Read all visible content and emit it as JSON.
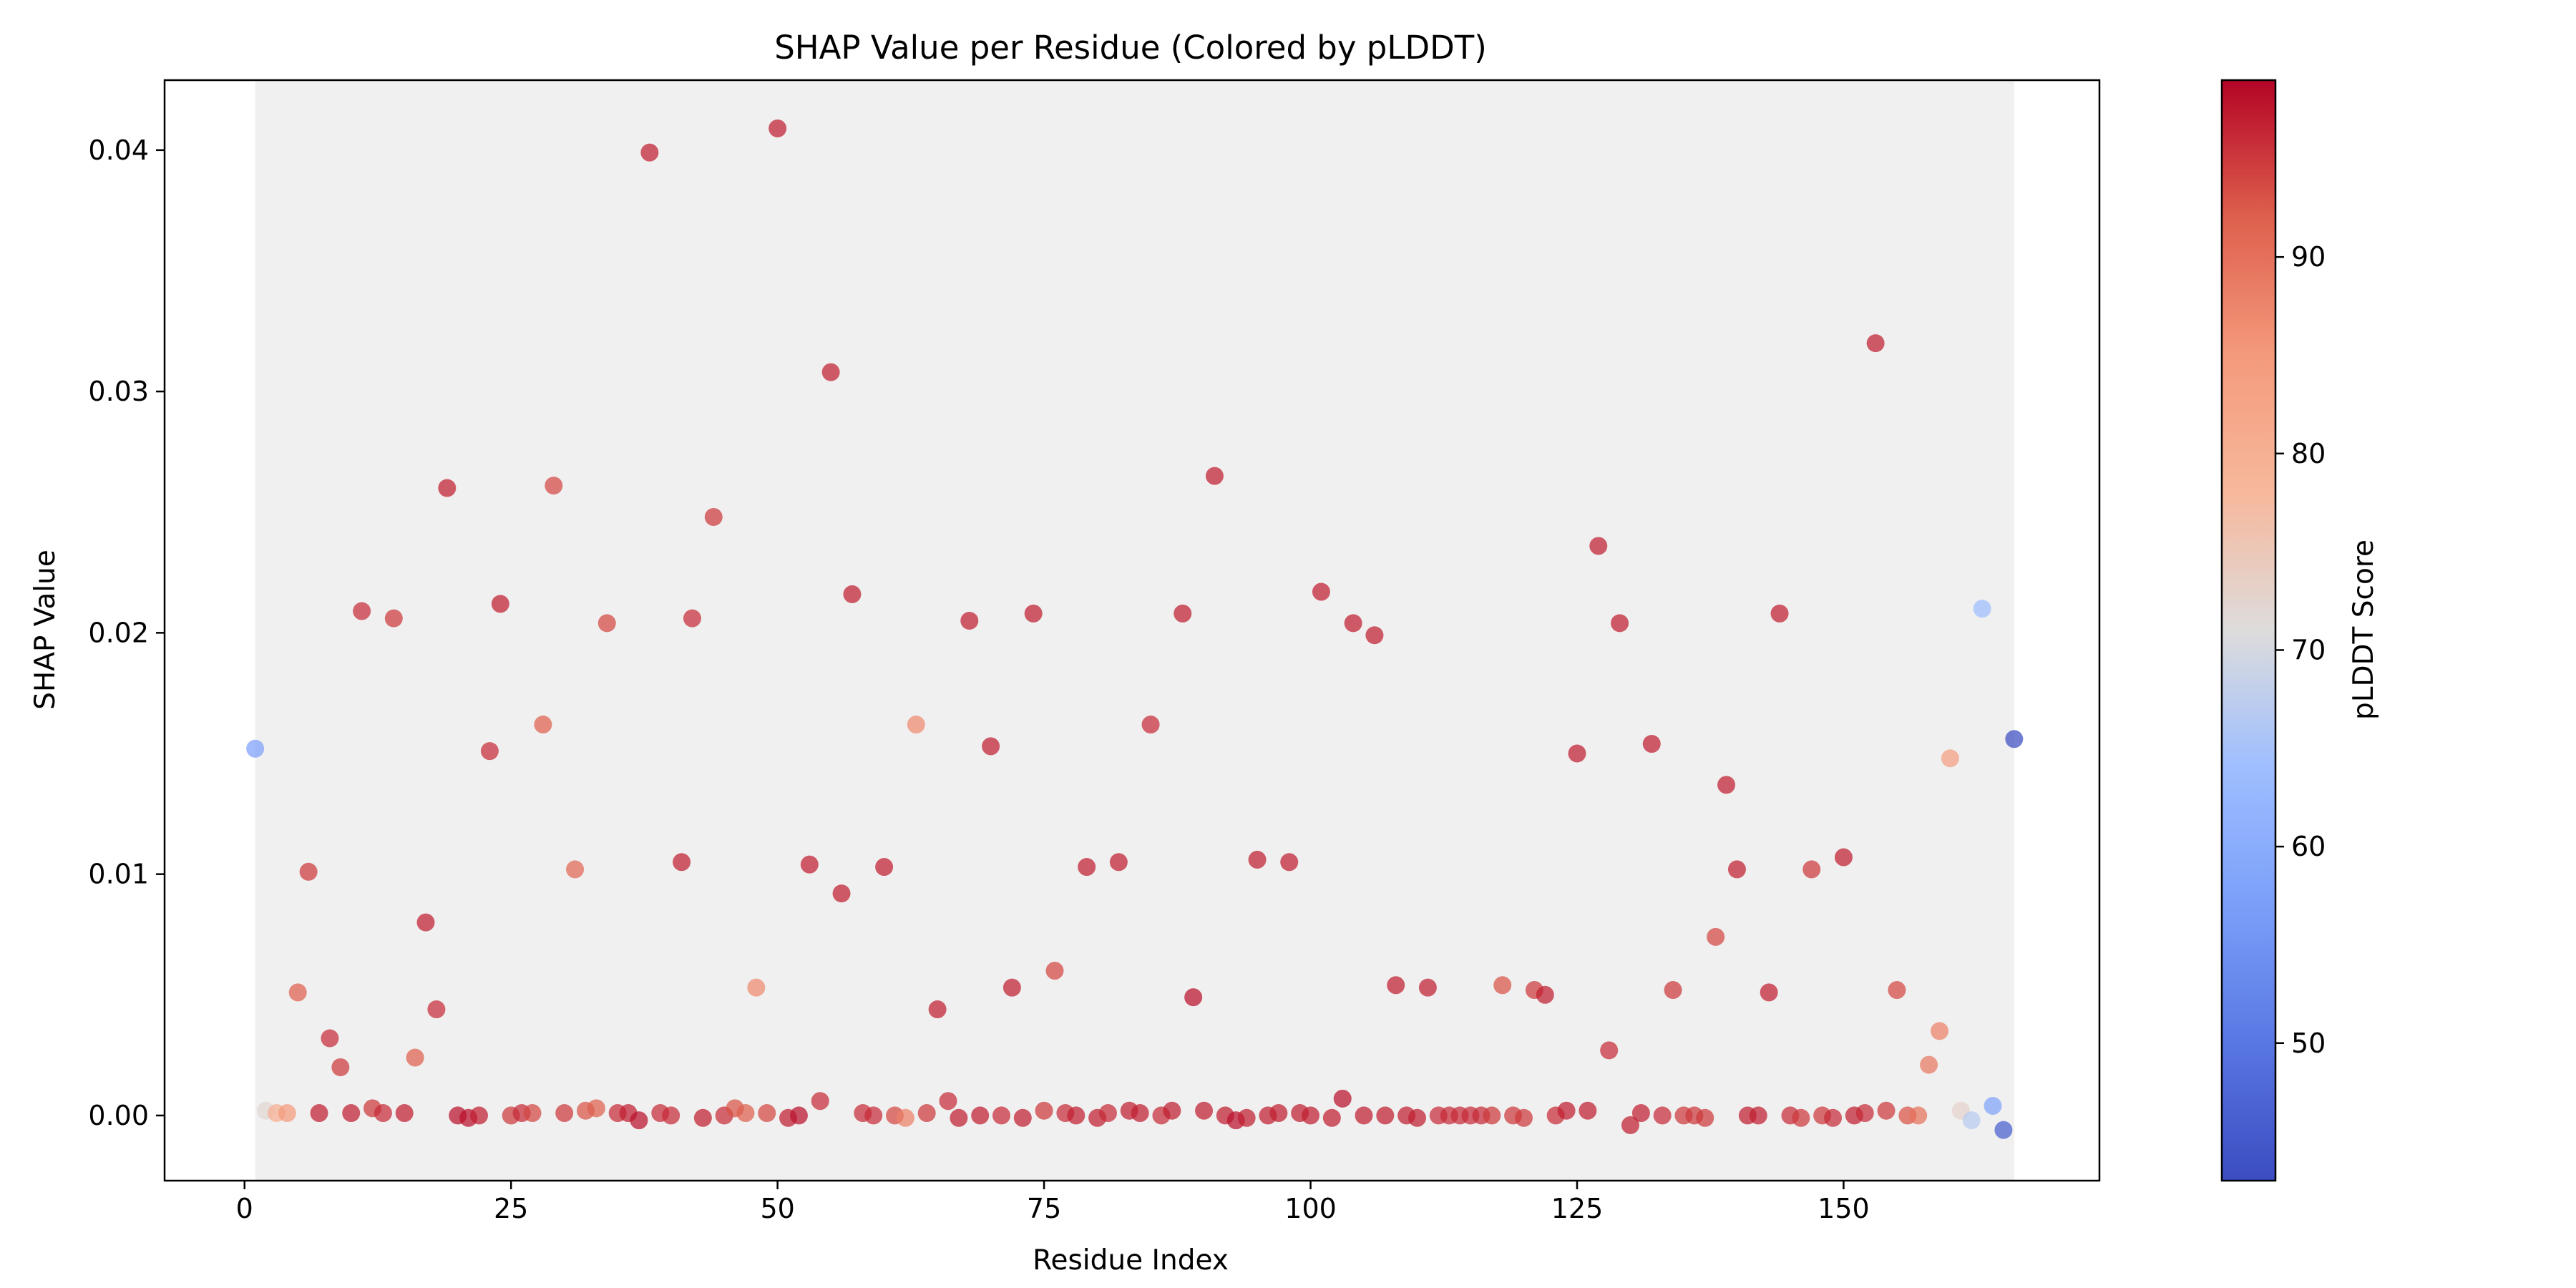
{
  "chart_data": {
    "type": "scatter",
    "title": "SHAP Value per Residue (Colored by pLDDT)",
    "xlabel": "Residue Index",
    "ylabel": "SHAP Value",
    "xlim": [
      -7.5,
      174.0
    ],
    "ylim": [
      -0.0027,
      0.0429
    ],
    "xticks": [
      0,
      25,
      50,
      75,
      100,
      125,
      150
    ],
    "xtick_labels": [
      "0",
      "25",
      "50",
      "75",
      "100",
      "125",
      "150"
    ],
    "yticks": [
      0.0,
      0.01,
      0.02,
      0.03,
      0.04
    ],
    "ytick_labels": [
      "0.00",
      "0.01",
      "0.02",
      "0.03",
      "0.04"
    ],
    "grid": false,
    "shaded_region": {
      "x": [
        1,
        166
      ],
      "color": "#f0f0f0"
    },
    "colormap": "coolwarm",
    "colorbar": {
      "label": "pLDDT Score",
      "range": [
        43,
        99
      ],
      "ticks": [
        50,
        60,
        70,
        80,
        90
      ],
      "tick_labels": [
        "50",
        "60",
        "70",
        "80",
        "90"
      ]
    },
    "points": [
      {
        "x": 1,
        "y": 0.0152,
        "c": 57
      },
      {
        "x": 2,
        "y": 0.0002,
        "c": 72
      },
      {
        "x": 3,
        "y": 0.0001,
        "c": 80
      },
      {
        "x": 4,
        "y": 0.0001,
        "c": 85
      },
      {
        "x": 5,
        "y": 0.0051,
        "c": 92
      },
      {
        "x": 6,
        "y": 0.0101,
        "c": 95
      },
      {
        "x": 7,
        "y": 0.0001,
        "c": 97
      },
      {
        "x": 8,
        "y": 0.0032,
        "c": 96
      },
      {
        "x": 9,
        "y": 0.002,
        "c": 95
      },
      {
        "x": 10,
        "y": 0.0001,
        "c": 97
      },
      {
        "x": 11,
        "y": 0.0209,
        "c": 96
      },
      {
        "x": 12,
        "y": 0.0003,
        "c": 95
      },
      {
        "x": 13,
        "y": 0.0001,
        "c": 96
      },
      {
        "x": 14,
        "y": 0.0206,
        "c": 95
      },
      {
        "x": 15,
        "y": 0.0001,
        "c": 97
      },
      {
        "x": 16,
        "y": 0.0024,
        "c": 92
      },
      {
        "x": 17,
        "y": 0.008,
        "c": 97
      },
      {
        "x": 18,
        "y": 0.0044,
        "c": 96
      },
      {
        "x": 19,
        "y": 0.026,
        "c": 97
      },
      {
        "x": 20,
        "y": 0.0,
        "c": 98
      },
      {
        "x": 21,
        "y": -0.0001,
        "c": 98
      },
      {
        "x": 22,
        "y": 0.0,
        "c": 97
      },
      {
        "x": 23,
        "y": 0.0151,
        "c": 96
      },
      {
        "x": 24,
        "y": 0.0212,
        "c": 97
      },
      {
        "x": 25,
        "y": 0.0,
        "c": 95
      },
      {
        "x": 26,
        "y": 0.0001,
        "c": 96
      },
      {
        "x": 27,
        "y": 0.0001,
        "c": 94
      },
      {
        "x": 28,
        "y": 0.0162,
        "c": 92
      },
      {
        "x": 29,
        "y": 0.0261,
        "c": 94
      },
      {
        "x": 30,
        "y": 0.0001,
        "c": 95
      },
      {
        "x": 31,
        "y": 0.0102,
        "c": 91
      },
      {
        "x": 32,
        "y": 0.0002,
        "c": 93
      },
      {
        "x": 33,
        "y": 0.0003,
        "c": 92
      },
      {
        "x": 34,
        "y": 0.0204,
        "c": 94
      },
      {
        "x": 35,
        "y": 0.0001,
        "c": 96
      },
      {
        "x": 36,
        "y": 0.0001,
        "c": 97
      },
      {
        "x": 37,
        "y": -0.0002,
        "c": 98
      },
      {
        "x": 38,
        "y": 0.0399,
        "c": 97
      },
      {
        "x": 39,
        "y": 0.0001,
        "c": 96
      },
      {
        "x": 40,
        "y": 0.0,
        "c": 96
      },
      {
        "x": 41,
        "y": 0.0105,
        "c": 97
      },
      {
        "x": 42,
        "y": 0.0206,
        "c": 96
      },
      {
        "x": 43,
        "y": -0.0001,
        "c": 97
      },
      {
        "x": 44,
        "y": 0.0248,
        "c": 95
      },
      {
        "x": 45,
        "y": 0.0,
        "c": 96
      },
      {
        "x": 46,
        "y": 0.0003,
        "c": 93
      },
      {
        "x": 47,
        "y": 0.0001,
        "c": 92
      },
      {
        "x": 48,
        "y": 0.0053,
        "c": 87
      },
      {
        "x": 49,
        "y": 0.0001,
        "c": 94
      },
      {
        "x": 50,
        "y": 0.0409,
        "c": 97
      },
      {
        "x": 51,
        "y": -0.0001,
        "c": 97
      },
      {
        "x": 52,
        "y": 0.0,
        "c": 98
      },
      {
        "x": 53,
        "y": 0.0104,
        "c": 97
      },
      {
        "x": 54,
        "y": 0.0006,
        "c": 96
      },
      {
        "x": 55,
        "y": 0.0308,
        "c": 97
      },
      {
        "x": 56,
        "y": 0.0092,
        "c": 97
      },
      {
        "x": 57,
        "y": 0.0216,
        "c": 97
      },
      {
        "x": 58,
        "y": 0.0001,
        "c": 96
      },
      {
        "x": 59,
        "y": 0.0,
        "c": 96
      },
      {
        "x": 60,
        "y": 0.0103,
        "c": 97
      },
      {
        "x": 61,
        "y": 0.0,
        "c": 94
      },
      {
        "x": 62,
        "y": -0.0001,
        "c": 88
      },
      {
        "x": 63,
        "y": 0.0162,
        "c": 87
      },
      {
        "x": 64,
        "y": 0.0001,
        "c": 95
      },
      {
        "x": 65,
        "y": 0.0044,
        "c": 97
      },
      {
        "x": 66,
        "y": 0.0006,
        "c": 96
      },
      {
        "x": 67,
        "y": -0.0001,
        "c": 97
      },
      {
        "x": 68,
        "y": 0.0205,
        "c": 97
      },
      {
        "x": 69,
        "y": 0.0,
        "c": 97
      },
      {
        "x": 70,
        "y": 0.0153,
        "c": 97
      },
      {
        "x": 71,
        "y": 0.0,
        "c": 96
      },
      {
        "x": 72,
        "y": 0.0053,
        "c": 97
      },
      {
        "x": 73,
        "y": -0.0001,
        "c": 97
      },
      {
        "x": 74,
        "y": 0.0208,
        "c": 97
      },
      {
        "x": 75,
        "y": 0.0002,
        "c": 95
      },
      {
        "x": 76,
        "y": 0.006,
        "c": 94
      },
      {
        "x": 77,
        "y": 0.0001,
        "c": 96
      },
      {
        "x": 78,
        "y": 0.0,
        "c": 97
      },
      {
        "x": 79,
        "y": 0.0103,
        "c": 97
      },
      {
        "x": 80,
        "y": -0.0001,
        "c": 97
      },
      {
        "x": 81,
        "y": 0.0001,
        "c": 96
      },
      {
        "x": 82,
        "y": 0.0105,
        "c": 97
      },
      {
        "x": 83,
        "y": 0.0002,
        "c": 97
      },
      {
        "x": 84,
        "y": 0.0001,
        "c": 97
      },
      {
        "x": 85,
        "y": 0.0162,
        "c": 96
      },
      {
        "x": 86,
        "y": 0.0,
        "c": 96
      },
      {
        "x": 87,
        "y": 0.0002,
        "c": 97
      },
      {
        "x": 88,
        "y": 0.0208,
        "c": 97
      },
      {
        "x": 89,
        "y": 0.0049,
        "c": 98
      },
      {
        "x": 90,
        "y": 0.0002,
        "c": 97
      },
      {
        "x": 91,
        "y": 0.0265,
        "c": 97
      },
      {
        "x": 92,
        "y": 0.0,
        "c": 97
      },
      {
        "x": 93,
        "y": -0.0002,
        "c": 98
      },
      {
        "x": 94,
        "y": -0.0001,
        "c": 97
      },
      {
        "x": 95,
        "y": 0.0106,
        "c": 97
      },
      {
        "x": 96,
        "y": 0.0,
        "c": 97
      },
      {
        "x": 97,
        "y": 0.0001,
        "c": 97
      },
      {
        "x": 98,
        "y": 0.0105,
        "c": 97
      },
      {
        "x": 99,
        "y": 0.0001,
        "c": 97
      },
      {
        "x": 100,
        "y": 0.0,
        "c": 97
      },
      {
        "x": 101,
        "y": 0.0217,
        "c": 97
      },
      {
        "x": 102,
        "y": -0.0001,
        "c": 97
      },
      {
        "x": 103,
        "y": 0.0007,
        "c": 98
      },
      {
        "x": 104,
        "y": 0.0204,
        "c": 97
      },
      {
        "x": 105,
        "y": 0.0,
        "c": 97
      },
      {
        "x": 106,
        "y": 0.0199,
        "c": 97
      },
      {
        "x": 107,
        "y": 0.0,
        "c": 97
      },
      {
        "x": 108,
        "y": 0.0054,
        "c": 97
      },
      {
        "x": 109,
        "y": 0.0,
        "c": 97
      },
      {
        "x": 110,
        "y": -0.0001,
        "c": 97
      },
      {
        "x": 111,
        "y": 0.0053,
        "c": 97
      },
      {
        "x": 112,
        "y": 0.0,
        "c": 96
      },
      {
        "x": 113,
        "y": 0.0,
        "c": 96
      },
      {
        "x": 114,
        "y": 0.0,
        "c": 96
      },
      {
        "x": 115,
        "y": 0.0,
        "c": 96
      },
      {
        "x": 116,
        "y": 0.0,
        "c": 96
      },
      {
        "x": 117,
        "y": 0.0,
        "c": 95
      },
      {
        "x": 118,
        "y": 0.0054,
        "c": 93
      },
      {
        "x": 119,
        "y": 0.0,
        "c": 95
      },
      {
        "x": 120,
        "y": -0.0001,
        "c": 95
      },
      {
        "x": 121,
        "y": 0.0052,
        "c": 95
      },
      {
        "x": 122,
        "y": 0.005,
        "c": 97
      },
      {
        "x": 123,
        "y": 0.0,
        "c": 96
      },
      {
        "x": 124,
        "y": 0.0002,
        "c": 97
      },
      {
        "x": 125,
        "y": 0.015,
        "c": 97
      },
      {
        "x": 126,
        "y": 0.0002,
        "c": 97
      },
      {
        "x": 127,
        "y": 0.0236,
        "c": 97
      },
      {
        "x": 128,
        "y": 0.0027,
        "c": 96
      },
      {
        "x": 129,
        "y": 0.0204,
        "c": 97
      },
      {
        "x": 130,
        "y": -0.0004,
        "c": 97
      },
      {
        "x": 131,
        "y": 0.0001,
        "c": 97
      },
      {
        "x": 132,
        "y": 0.0154,
        "c": 97
      },
      {
        "x": 133,
        "y": 0.0,
        "c": 96
      },
      {
        "x": 134,
        "y": 0.0052,
        "c": 95
      },
      {
        "x": 135,
        "y": 0.0,
        "c": 95
      },
      {
        "x": 136,
        "y": 0.0,
        "c": 95
      },
      {
        "x": 137,
        "y": -0.0001,
        "c": 95
      },
      {
        "x": 138,
        "y": 0.0074,
        "c": 94
      },
      {
        "x": 139,
        "y": 0.0137,
        "c": 97
      },
      {
        "x": 140,
        "y": 0.0102,
        "c": 97
      },
      {
        "x": 141,
        "y": 0.0,
        "c": 97
      },
      {
        "x": 142,
        "y": 0.0,
        "c": 97
      },
      {
        "x": 143,
        "y": 0.0051,
        "c": 97
      },
      {
        "x": 144,
        "y": 0.0208,
        "c": 97
      },
      {
        "x": 145,
        "y": 0.0,
        "c": 96
      },
      {
        "x": 146,
        "y": -0.0001,
        "c": 95
      },
      {
        "x": 147,
        "y": 0.0102,
        "c": 95
      },
      {
        "x": 148,
        "y": 0.0,
        "c": 95
      },
      {
        "x": 149,
        "y": -0.0001,
        "c": 96
      },
      {
        "x": 150,
        "y": 0.0107,
        "c": 97
      },
      {
        "x": 151,
        "y": 0.0,
        "c": 97
      },
      {
        "x": 152,
        "y": 0.0001,
        "c": 96
      },
      {
        "x": 153,
        "y": 0.032,
        "c": 97
      },
      {
        "x": 154,
        "y": 0.0002,
        "c": 95
      },
      {
        "x": 155,
        "y": 0.0052,
        "c": 94
      },
      {
        "x": 156,
        "y": 0.0,
        "c": 93
      },
      {
        "x": 157,
        "y": 0.0,
        "c": 90
      },
      {
        "x": 158,
        "y": 0.0021,
        "c": 89
      },
      {
        "x": 159,
        "y": 0.0035,
        "c": 88
      },
      {
        "x": 160,
        "y": 0.0148,
        "c": 84
      },
      {
        "x": 161,
        "y": 0.0002,
        "c": 73
      },
      {
        "x": 162,
        "y": -0.0002,
        "c": 67
      },
      {
        "x": 163,
        "y": 0.021,
        "c": 64
      },
      {
        "x": 164,
        "y": 0.0004,
        "c": 58
      },
      {
        "x": 165,
        "y": -0.0006,
        "c": 46
      },
      {
        "x": 166,
        "y": 0.0156,
        "c": 43
      }
    ]
  }
}
